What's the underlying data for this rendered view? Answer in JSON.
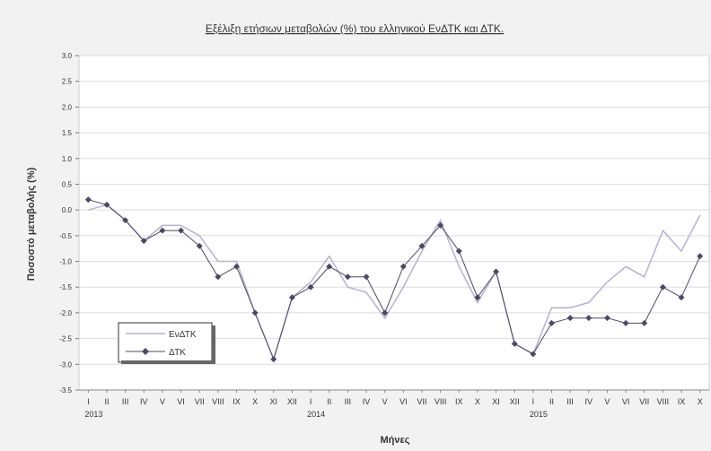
{
  "chart_data": {
    "type": "line",
    "title": "Εξέλιξη ετήσιων μεταβολών (%) του ελληνικού ΕνΔΤΚ και ΔΤΚ.",
    "xlabel": "Μήνες",
    "ylabel": "Ποσοστό μεταβολής (%)",
    "ylim": [
      -3.5,
      3.0
    ],
    "yticks": [
      "3.0",
      "2.5",
      "2.0",
      "1.5",
      "1.0",
      "0.5",
      "0.0",
      "-0.5",
      "-1.0",
      "-1.5",
      "-2.0",
      "-2.5",
      "-3.0",
      "-3.5"
    ],
    "categories": [
      "I",
      "II",
      "III",
      "IV",
      "V",
      "VI",
      "VII",
      "VIII",
      "IX",
      "X",
      "XI",
      "XII",
      "I",
      "II",
      "III",
      "IV",
      "V",
      "VI",
      "VII",
      "VIII",
      "IX",
      "X",
      "XI",
      "XII",
      "I",
      "II",
      "III",
      "IV",
      "V",
      "VI",
      "VII",
      "VIII",
      "IX",
      "X"
    ],
    "years": [
      {
        "label": "2013",
        "index": 0
      },
      {
        "label": "2014",
        "index": 12
      },
      {
        "label": "2015",
        "index": 24
      }
    ],
    "grid": true,
    "legend_position": "bottom-left",
    "series": [
      {
        "name": "ΕνΔΤΚ",
        "color": "#b7b1cf",
        "marker": "none",
        "values": [
          0.0,
          0.1,
          -0.2,
          -0.6,
          -0.3,
          -0.3,
          -0.5,
          -1.0,
          -1.0,
          -2.0,
          -2.9,
          -1.7,
          -1.4,
          -0.9,
          -1.5,
          -1.6,
          -2.1,
          -1.5,
          -0.8,
          -0.2,
          -1.1,
          -1.8,
          -1.2,
          -2.6,
          -2.8,
          -1.9,
          -1.9,
          -1.8,
          -1.4,
          -1.1,
          -1.3,
          -0.4,
          -0.8,
          -0.1
        ]
      },
      {
        "name": "ΔΤΚ",
        "color": "#4d4866",
        "marker": "diamond",
        "values": [
          0.2,
          0.1,
          -0.2,
          -0.6,
          -0.4,
          -0.4,
          -0.7,
          -1.3,
          -1.1,
          -2.0,
          -2.9,
          -1.7,
          -1.5,
          -1.1,
          -1.3,
          -1.3,
          -2.0,
          -1.1,
          -0.7,
          -0.3,
          -0.8,
          -1.7,
          -1.2,
          -2.6,
          -2.8,
          -2.2,
          -2.1,
          -2.1,
          -2.1,
          -2.2,
          -2.2,
          -1.5,
          -1.7,
          -0.9
        ]
      }
    ]
  }
}
